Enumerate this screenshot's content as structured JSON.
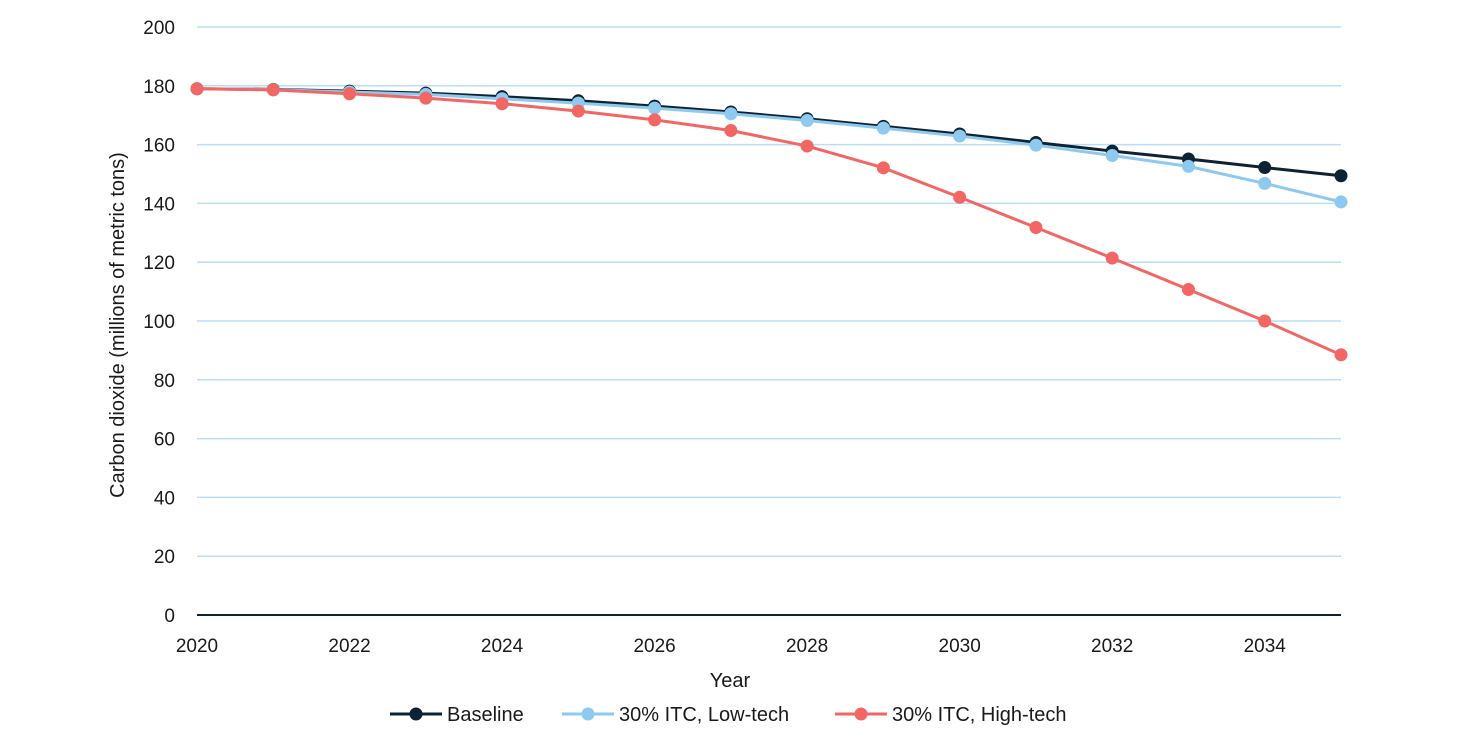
{
  "chart_data": {
    "type": "line",
    "title": "",
    "xlabel": "Year",
    "ylabel": "Carbon dioxide (millions of metric tons)",
    "xlim": [
      2020,
      2035
    ],
    "ylim": [
      0,
      200
    ],
    "x_ticks": [
      2020,
      2022,
      2024,
      2026,
      2028,
      2030,
      2032,
      2034
    ],
    "y_ticks": [
      0,
      20,
      40,
      60,
      80,
      100,
      120,
      140,
      160,
      180,
      200
    ],
    "grid": "horizontal",
    "legend_position": "bottom-center",
    "x": [
      2020,
      2021,
      2022,
      2023,
      2024,
      2025,
      2026,
      2027,
      2028,
      2029,
      2030,
      2031,
      2032,
      2033,
      2034,
      2035
    ],
    "series": [
      {
        "name": "Baseline",
        "color": "#0d2233",
        "values": [
          179,
          178.8,
          178.2,
          177.5,
          176.3,
          174.9,
          173.1,
          171.1,
          168.8,
          166.2,
          163.6,
          160.7,
          157.8,
          155.1,
          152.2,
          149.4
        ]
      },
      {
        "name": "30% ITC, Low-tech",
        "color": "#8ec9ef",
        "values": [
          179,
          178.7,
          177.9,
          177.1,
          175.6,
          174.1,
          172.4,
          170.5,
          168.2,
          165.6,
          162.9,
          159.8,
          156.3,
          152.6,
          146.8,
          140.5
        ]
      },
      {
        "name": "30% ITC, High-tech",
        "color": "#f26664",
        "values": [
          179,
          178.6,
          177.3,
          175.8,
          173.9,
          171.4,
          168.4,
          164.8,
          159.5,
          152.1,
          142.1,
          131.8,
          121.4,
          110.7,
          100.0,
          88.5
        ]
      }
    ],
    "gridline_color": "#b9def5",
    "axis_color": "#0d2233"
  }
}
